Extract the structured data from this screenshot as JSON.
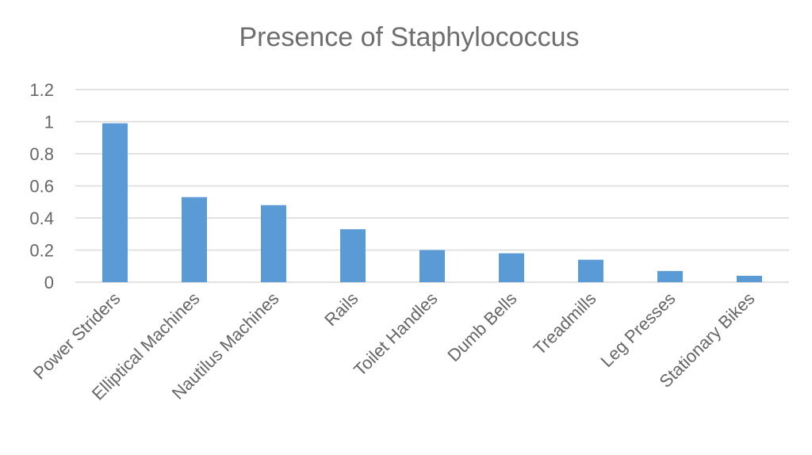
{
  "chart_data": {
    "type": "bar",
    "title": "Presence of Staphylococcus",
    "xlabel": "",
    "ylabel": "",
    "categories": [
      "Power Striders",
      "Elliptical Machines",
      "Nautilus Machines",
      "Rails",
      "Toilet Handles",
      "Dumb Bells",
      "Treadmills",
      "Leg Presses",
      "Stationary Bikes"
    ],
    "values": [
      0.99,
      0.53,
      0.48,
      0.33,
      0.2,
      0.18,
      0.14,
      0.07,
      0.04
    ],
    "ylim": [
      0,
      1.2
    ],
    "yticks": [
      "0",
      "0.2",
      "0.4",
      "0.6",
      "0.8",
      "1",
      "1.2"
    ],
    "grid": true,
    "legend": "none",
    "bar_color": "#5b9bd5"
  }
}
